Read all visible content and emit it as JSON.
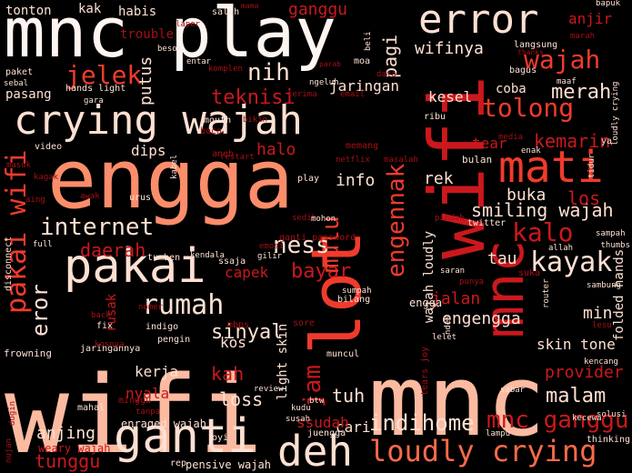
{
  "background_color": "#000000",
  "palette": [
    "#fee0d2",
    "#fcbba1",
    "#fc9272",
    "#fb6a4a",
    "#ef3b2c",
    "#cb181d",
    "#a50f15",
    "#67000d"
  ],
  "words": [
    {
      "text": "wifi",
      "color": "#fcbba1"
    },
    {
      "text": "mnc",
      "color": "#fcbba1"
    },
    {
      "text": "mnc play",
      "color": "#fff5f0"
    },
    {
      "text": "engga",
      "color": "#fc8d6a"
    },
    {
      "text": "crying wajah",
      "color": "#fee0d2"
    },
    {
      "text": "error",
      "color": "#fee0d2"
    },
    {
      "text": "lot",
      "color": "#ef3b2c"
    },
    {
      "text": "wifi",
      "color": "#cb181d"
    },
    {
      "text": "pakai",
      "color": "#fee0d2"
    },
    {
      "text": "ganti",
      "color": "#fee0d2"
    },
    {
      "text": "deh",
      "color": "#fee0d2"
    },
    {
      "text": "mati",
      "color": "#ef3b2c"
    },
    {
      "text": "mnc",
      "color": "#cb181d"
    },
    {
      "text": "loudly crying",
      "color": "#fb6a4a"
    },
    {
      "text": "pakai wifi",
      "color": "#ef3b2c"
    },
    {
      "text": "kayak",
      "color": "#fee0d2"
    },
    {
      "text": "rumah",
      "color": "#fee0d2"
    },
    {
      "text": "internet",
      "color": "#fee0d2"
    },
    {
      "text": "wajah",
      "color": "#ef3b2c"
    },
    {
      "text": "tolong",
      "color": "#ef3b2c"
    },
    {
      "text": "kalo",
      "color": "#cb181d"
    },
    {
      "text": "ness",
      "color": "#fee0d2"
    },
    {
      "text": "jelek",
      "color": "#ef3b2c"
    },
    {
      "text": "nih",
      "color": "#fee0d2"
    },
    {
      "text": "mnc ganggu",
      "color": "#cb181d"
    },
    {
      "text": "indihome",
      "color": "#fee0d2"
    },
    {
      "text": "merah",
      "color": "#fee0d2"
    },
    {
      "text": "eror",
      "color": "#fee0d2"
    },
    {
      "text": "sinyal",
      "color": "#fee0d2"
    },
    {
      "text": "bayar",
      "color": "#cb181d"
    },
    {
      "text": "mulu",
      "color": "#ef3b2c"
    },
    {
      "text": "jam",
      "color": "#cb181d"
    },
    {
      "text": "engennak",
      "color": "#ef3b2c"
    },
    {
      "text": "teknisi",
      "color": "#cb181d"
    },
    {
      "text": "malam",
      "color": "#fee0d2"
    },
    {
      "text": "jaringan",
      "color": "#fee0d2"
    },
    {
      "text": "pagi",
      "color": "#fee0d2"
    },
    {
      "text": "wifinya",
      "color": "#fee0d2"
    },
    {
      "text": "smiling wajah",
      "color": "#fee0d2"
    },
    {
      "text": "tuh",
      "color": "#fee0d2"
    },
    {
      "text": "tunggu",
      "color": "#cb181d"
    },
    {
      "text": "daerah",
      "color": "#cb181d"
    },
    {
      "text": "loss",
      "color": "#fee0d2"
    },
    {
      "text": "kah",
      "color": "#cb181d"
    },
    {
      "text": "anjing",
      "color": "#fee0d2"
    },
    {
      "text": "tonton",
      "color": "#fee0d2"
    },
    {
      "text": "kak",
      "color": "#fee0d2"
    },
    {
      "text": "habis",
      "color": "#fee0d2"
    },
    {
      "text": "ganggu",
      "color": "#cb181d"
    },
    {
      "text": "anjir",
      "color": "#cb181d"
    },
    {
      "text": "kesel",
      "color": "#fee0d2"
    },
    {
      "text": "coba",
      "color": "#fee0d2"
    },
    {
      "text": "kemarin",
      "color": "#cb181d"
    },
    {
      "text": "buka",
      "color": "#fee0d2"
    },
    {
      "text": "los",
      "color": "#cb181d"
    },
    {
      "text": "tau",
      "color": "#fee0d2"
    },
    {
      "text": "min",
      "color": "#fee0d2"
    },
    {
      "text": "engengga",
      "color": "#fee0d2"
    },
    {
      "text": "skin tone",
      "color": "#fee0d2"
    },
    {
      "text": "provider",
      "color": "#cb181d"
    },
    {
      "text": "halo",
      "color": "#cb181d"
    },
    {
      "text": "info",
      "color": "#fee0d2"
    },
    {
      "text": "rek",
      "color": "#fee0d2"
    },
    {
      "text": "capek",
      "color": "#cb181d"
    },
    {
      "text": "jalan",
      "color": "#cb181d"
    },
    {
      "text": "putus",
      "color": "#fee0d2"
    },
    {
      "text": "dips",
      "color": "#fee0d2"
    },
    {
      "text": "kos",
      "color": "#fee0d2"
    },
    {
      "text": "kerja",
      "color": "#fee0d2"
    },
    {
      "text": "cari",
      "color": "#fee0d2"
    },
    {
      "text": "ssudah",
      "color": "#cb181d"
    },
    {
      "text": "nyala",
      "color": "#cb181d"
    },
    {
      "text": "sedih",
      "color": "#a50f15"
    },
    {
      "text": "tear",
      "color": "#cb181d"
    },
    {
      "text": "lesu",
      "color": "#a50f15"
    },
    {
      "text": "engga",
      "color": "#fee0d2"
    },
    {
      "text": "trouble",
      "color": "#a50f15"
    },
    {
      "text": "pasang",
      "color": "#fee0d2"
    },
    {
      "text": "hands light",
      "color": "#fee0d2"
    },
    {
      "text": "langsung",
      "color": "#fee0d2"
    },
    {
      "text": "enraged wajah",
      "color": "#fee0d2"
    },
    {
      "text": "weary wajah",
      "color": "#cb181d"
    },
    {
      "text": "pensive wajah",
      "color": "#fee0d2"
    },
    {
      "text": "folded hands",
      "color": "#fee0d2"
    },
    {
      "text": "light skin",
      "color": "#fee0d2"
    },
    {
      "text": "wajah loudly",
      "color": "#fee0d2"
    },
    {
      "text": "rusak",
      "color": "#cb181d"
    },
    {
      "text": "twitter",
      "color": "#fee0d2"
    },
    {
      "text": "ganti password",
      "color": "#a50f15"
    },
    {
      "text": "tumben",
      "color": "#fee0d2"
    },
    {
      "text": "indigo",
      "color": "#fee0d2"
    },
    {
      "text": "jaringannya",
      "color": "#fee0d2"
    },
    {
      "text": "muncul",
      "color": "#fee0d2"
    },
    {
      "text": "frowning",
      "color": "#fee0d2"
    },
    {
      "text": "restart",
      "color": "#a50f15"
    },
    {
      "text": "netflix",
      "color": "#a50f15"
    },
    {
      "text": "masalah",
      "color": "#a50f15"
    },
    {
      "text": "bulan",
      "color": "#fee0d2"
    },
    {
      "text": "ribu",
      "color": "#fee0d2"
    },
    {
      "text": "thumbs",
      "color": "#fee0d2"
    },
    {
      "text": "bagus",
      "color": "#fee0d2"
    },
    {
      "text": "paket",
      "color": "#fee0d2"
    },
    {
      "text": "sebal",
      "color": "#fee0d2"
    },
    {
      "text": "gara",
      "color": "#fee0d2"
    },
    {
      "text": "video",
      "color": "#fee0d2"
    },
    {
      "text": "masuk",
      "color": "#a50f15"
    },
    {
      "text": "kagak",
      "color": "#a50f15"
    },
    {
      "text": "urus",
      "color": "#fee0d2"
    },
    {
      "text": "kabel",
      "color": "#fee0d2"
    },
    {
      "text": "sampah",
      "color": "#fee0d2"
    },
    {
      "text": "ssaja",
      "color": "#fee0d2"
    },
    {
      "text": "gilir",
      "color": "#fee0d2"
    },
    {
      "text": "bilang",
      "color": "#fee0d2"
    },
    {
      "text": "sumpah",
      "color": "#fee0d2"
    },
    {
      "text": "kencang",
      "color": "#fee0d2"
    },
    {
      "text": "sabar",
      "color": "#fee0d2"
    },
    {
      "text": "lampu",
      "color": "#fee0d2"
    },
    {
      "text": "thinking",
      "color": "#fee0d2"
    },
    {
      "text": "solusi",
      "color": "#fee0d2"
    },
    {
      "text": "kecewa",
      "color": "#fee0d2"
    },
    {
      "text": "juengga",
      "color": "#fee0d2"
    },
    {
      "text": "review",
      "color": "#fee0d2"
    },
    {
      "text": "oyi",
      "color": "#fee0d2"
    },
    {
      "text": "minggu",
      "color": "#a50f15"
    },
    {
      "text": "tanpa",
      "color": "#a50f15"
    },
    {
      "text": "mahal",
      "color": "#fee0d2"
    },
    {
      "text": "nujan",
      "color": "#a50f15"
    },
    {
      "text": "rep",
      "color": "#fee0d2"
    },
    {
      "text": "disconnect",
      "color": "#fee0d2"
    },
    {
      "text": "full",
      "color": "#fee0d2"
    },
    {
      "text": "fix",
      "color": "#fee0d2"
    },
    {
      "text": "back",
      "color": "#a50f15"
    },
    {
      "text": "pengin",
      "color": "#fee0d2"
    },
    {
      "text": "mbps",
      "color": "#a50f15"
    },
    {
      "text": "nomer",
      "color": "#a50f15"
    },
    {
      "text": "kendala",
      "color": "#fee0d2"
    },
    {
      "text": "emosi",
      "color": "#a50f15"
    },
    {
      "text": "sore",
      "color": "#a50f15"
    },
    {
      "text": "mohon",
      "color": "#fee0d2"
    },
    {
      "text": "pindah",
      "color": "#a50f15"
    },
    {
      "text": "allah",
      "color": "#fee0d2"
    },
    {
      "text": "tidur",
      "color": "#fee0d2"
    },
    {
      "text": "saran",
      "color": "#fee0d2"
    },
    {
      "text": "punya",
      "color": "#a50f15"
    },
    {
      "text": "suka",
      "color": "#a50f15"
    },
    {
      "text": "sambung",
      "color": "#fee0d2"
    },
    {
      "text": "router",
      "color": "#fee0d2"
    },
    {
      "text": "lelet",
      "color": "#fee0d2"
    },
    {
      "text": "ndes",
      "color": "#fee0d2"
    },
    {
      "text": "enak",
      "color": "#fee0d2"
    },
    {
      "text": "media",
      "color": "#a50f15"
    },
    {
      "text": "maaf",
      "color": "#fee0d2"
    },
    {
      "text": "thanks",
      "color": "#a50f15"
    },
    {
      "text": "marah",
      "color": "#a50f15"
    },
    {
      "text": "bapuk",
      "color": "#fee0d2"
    },
    {
      "text": "lapor",
      "color": "#a50f15"
    },
    {
      "text": "salah",
      "color": "#fee0d2"
    },
    {
      "text": "besok",
      "color": "#fee0d2"
    },
    {
      "text": "komplen",
      "color": "#a50f15"
    },
    {
      "text": "entar",
      "color": "#fee0d2"
    },
    {
      "text": "parab",
      "color": "#a50f15"
    },
    {
      "text": "moa",
      "color": "#fee0d2"
    },
    {
      "text": "data",
      "color": "#a50f15"
    },
    {
      "text": "ngeluh",
      "color": "#fee0d2"
    },
    {
      "text": "email",
      "color": "#a50f15"
    },
    {
      "text": "terima",
      "color": "#a50f15"
    },
    {
      "text": "bikin",
      "color": "#a50f15"
    },
    {
      "text": "mouth",
      "color": "#fee0d2"
    },
    {
      "text": "baca",
      "color": "#a50f15"
    },
    {
      "text": "aneh",
      "color": "#a50f15"
    },
    {
      "text": "memang",
      "color": "#a50f15"
    },
    {
      "text": "kosnya",
      "color": "#a50f15"
    },
    {
      "text": "awak",
      "color": "#a50f15"
    },
    {
      "text": "aing",
      "color": "#a50f15"
    },
    {
      "text": "tears joy",
      "color": "#a50f15"
    },
    {
      "text": "kudu",
      "color": "#fee0d2"
    },
    {
      "text": "susah",
      "color": "#fee0d2"
    },
    {
      "text": "btw",
      "color": "#fee0d2"
    },
    {
      "text": "dogin",
      "color": "#a50f15"
    },
    {
      "text": "beli",
      "color": "#fee0d2"
    },
    {
      "text": "mama",
      "color": "#a50f15"
    },
    {
      "text": "play",
      "color": "#fee0d2"
    },
    {
      "text": "ya",
      "color": "#fee0d2"
    },
    {
      "text": "loudly crying",
      "color": "#fee0d2"
    }
  ]
}
